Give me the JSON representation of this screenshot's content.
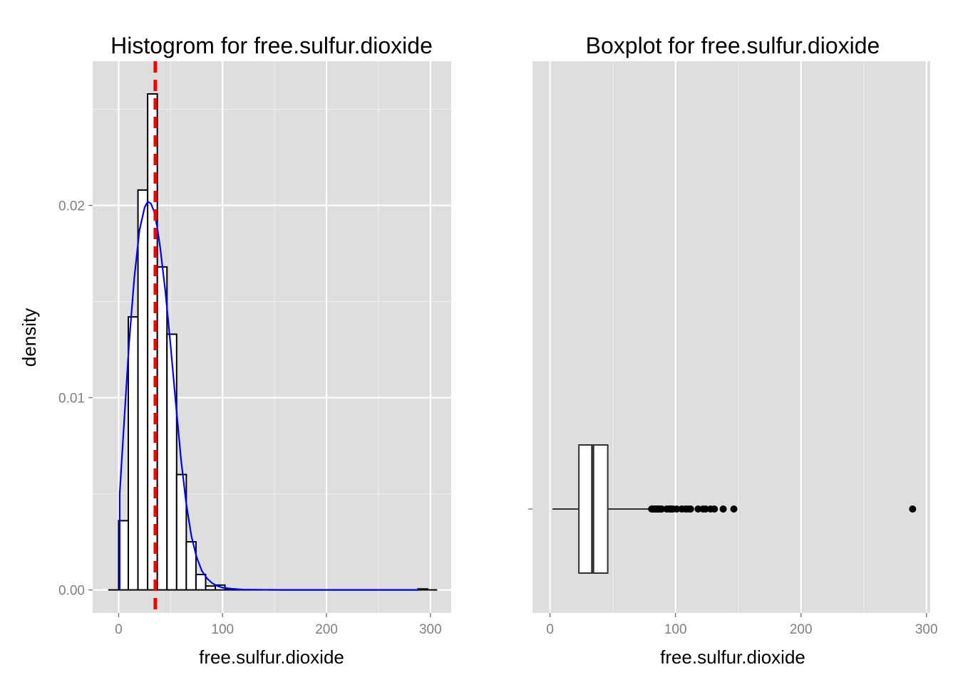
{
  "chart_data": [
    {
      "type": "histogram",
      "title": "Histogrom for free.sulfur.dioxide",
      "xlabel": "free.sulfur.dioxide",
      "ylabel": "density",
      "xlim": [
        -25,
        320
      ],
      "ylim": [
        -0.0012,
        0.0275
      ],
      "x_ticks": [
        0,
        100,
        200,
        300
      ],
      "y_ticks": [
        0.0,
        0.01,
        0.02
      ],
      "y_tick_labels": [
        "0.00",
        "0.01",
        "0.02"
      ],
      "grid": true,
      "bin_width": 9.3,
      "bins": [
        {
          "x0": -10,
          "x1": 0,
          "density": 0.0
        },
        {
          "x0": 0,
          "x1": 9.3,
          "density": 0.0036
        },
        {
          "x0": 9.3,
          "x1": 18.6,
          "density": 0.0142
        },
        {
          "x0": 18.6,
          "x1": 27.9,
          "density": 0.0208
        },
        {
          "x0": 27.9,
          "x1": 37.2,
          "density": 0.0258
        },
        {
          "x0": 37.2,
          "x1": 46.5,
          "density": 0.0168
        },
        {
          "x0": 46.5,
          "x1": 55.8,
          "density": 0.0133
        },
        {
          "x0": 55.8,
          "x1": 65.1,
          "density": 0.006
        },
        {
          "x0": 65.1,
          "x1": 74.4,
          "density": 0.0025
        },
        {
          "x0": 74.4,
          "x1": 83.7,
          "density": 0.0008
        },
        {
          "x0": 83.7,
          "x1": 93.0,
          "density": 0.0002
        },
        {
          "x0": 93.0,
          "x1": 102.3,
          "density": 0.00025
        },
        {
          "x0": 102.3,
          "x1": 111.6,
          "density": 5e-05
        },
        {
          "x0": 111.6,
          "x1": 288.0,
          "density": 0.0
        },
        {
          "x0": 288.0,
          "x1": 297.3,
          "density": 5e-05
        },
        {
          "x0": 297.3,
          "x1": 306.6,
          "density": 0.0
        }
      ],
      "density_curve": {
        "color": "#0000ff",
        "x": [
          1,
          1,
          5,
          10,
          15,
          20,
          25,
          28,
          31,
          34,
          37,
          40,
          45,
          50,
          55,
          60,
          65,
          70,
          75,
          80,
          85,
          90,
          95,
          100,
          110,
          120,
          140,
          160,
          200,
          250,
          289,
          289
        ],
        "y": [
          0.0,
          0.005,
          0.0085,
          0.0128,
          0.0162,
          0.0187,
          0.0199,
          0.0202,
          0.0201,
          0.0197,
          0.0189,
          0.0178,
          0.0155,
          0.0127,
          0.0097,
          0.0068,
          0.0045,
          0.0028,
          0.0017,
          0.001,
          0.0006,
          0.00035,
          0.0002,
          0.00012,
          5e-05,
          2e-05,
          5e-06,
          0.0,
          0.0,
          0.0,
          0.0,
          0.0
        ]
      },
      "mean_line": {
        "x": 35.3,
        "color": "#ff0000",
        "style": "dashed"
      }
    },
    {
      "type": "boxplot",
      "title": "Boxplot for free.sulfur.dioxide",
      "xlabel": "free.sulfur.dioxide",
      "xlim": [
        -14,
        303
      ],
      "x_ticks": [
        0,
        100,
        200,
        300
      ],
      "grid": true,
      "box": {
        "whisker_low": 2,
        "q1": 23,
        "median": 34,
        "q3": 46,
        "whisker_high": 80
      },
      "outliers": [
        81,
        82,
        83,
        84,
        85,
        86,
        87,
        88,
        89,
        93,
        95,
        96,
        97,
        98,
        101,
        105,
        108,
        110,
        112,
        118,
        122,
        124,
        128,
        131,
        138,
        146.5,
        289
      ]
    }
  ]
}
